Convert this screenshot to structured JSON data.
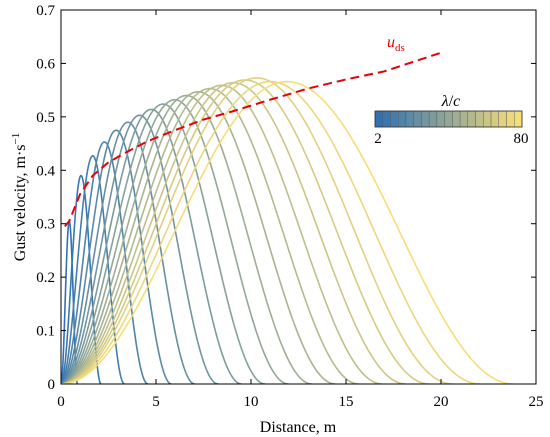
{
  "chart_data": {
    "type": "line",
    "title": "",
    "xlabel": "Distance, m",
    "ylabel": "Gust velocity, m·s",
    "ylabel_superscript": "−1",
    "xlim": [
      0,
      25
    ],
    "ylim": [
      0,
      0.7
    ],
    "xticks": [
      "0",
      "5",
      "10",
      "15",
      "20",
      "25"
    ],
    "yticks": [
      "0",
      "0.1",
      "0.2",
      "0.3",
      "0.4",
      "0.5",
      "0.6",
      "0.7"
    ],
    "grid": false,
    "series_shape": "1 - cos gust profiles u(x) = U/2 · (1 − cos(2πx/L))",
    "gusts": [
      {
        "length_m": 0.87,
        "peak": 0.305
      },
      {
        "length_m": 2.11,
        "peak": 0.39
      },
      {
        "length_m": 3.34,
        "peak": 0.427
      },
      {
        "length_m": 4.57,
        "peak": 0.453
      },
      {
        "length_m": 5.81,
        "peak": 0.475
      },
      {
        "length_m": 7.04,
        "peak": 0.49
      },
      {
        "length_m": 8.27,
        "peak": 0.503
      },
      {
        "length_m": 9.5,
        "peak": 0.514
      },
      {
        "length_m": 10.74,
        "peak": 0.524
      },
      {
        "length_m": 11.97,
        "peak": 0.532
      },
      {
        "length_m": 13.2,
        "peak": 0.54
      },
      {
        "length_m": 14.44,
        "peak": 0.547
      },
      {
        "length_m": 15.67,
        "peak": 0.553
      },
      {
        "length_m": 16.9,
        "peak": 0.559
      },
      {
        "length_m": 18.14,
        "peak": 0.564
      },
      {
        "length_m": 19.37,
        "peak": 0.569
      },
      {
        "length_m": 20.6,
        "peak": 0.573
      },
      {
        "length_m": 22.04,
        "peak": 0.566
      },
      {
        "length_m": 23.8,
        "peak": 0.566
      }
    ],
    "envelope": {
      "name": "u",
      "subscript": "ds",
      "color": "#e8000b",
      "style": "dashed",
      "x": [
        0.2,
        0.435,
        1.0,
        1.67,
        2.5,
        3.5,
        4.6,
        6.0,
        7.5,
        9.0,
        11.0,
        13.0,
        15.0,
        17.0,
        20.0
      ],
      "y": [
        0.295,
        0.305,
        0.355,
        0.39,
        0.415,
        0.435,
        0.455,
        0.475,
        0.495,
        0.51,
        0.532,
        0.553,
        0.57,
        0.585,
        0.62
      ]
    },
    "colorbar": {
      "label_numerator": "λ",
      "label_denominator": "c",
      "min_label": "2",
      "max_label": "80",
      "segments": 19,
      "color_start": "#2f71b2",
      "color_end": "#f7dd7a",
      "placement": "upper-right"
    }
  }
}
